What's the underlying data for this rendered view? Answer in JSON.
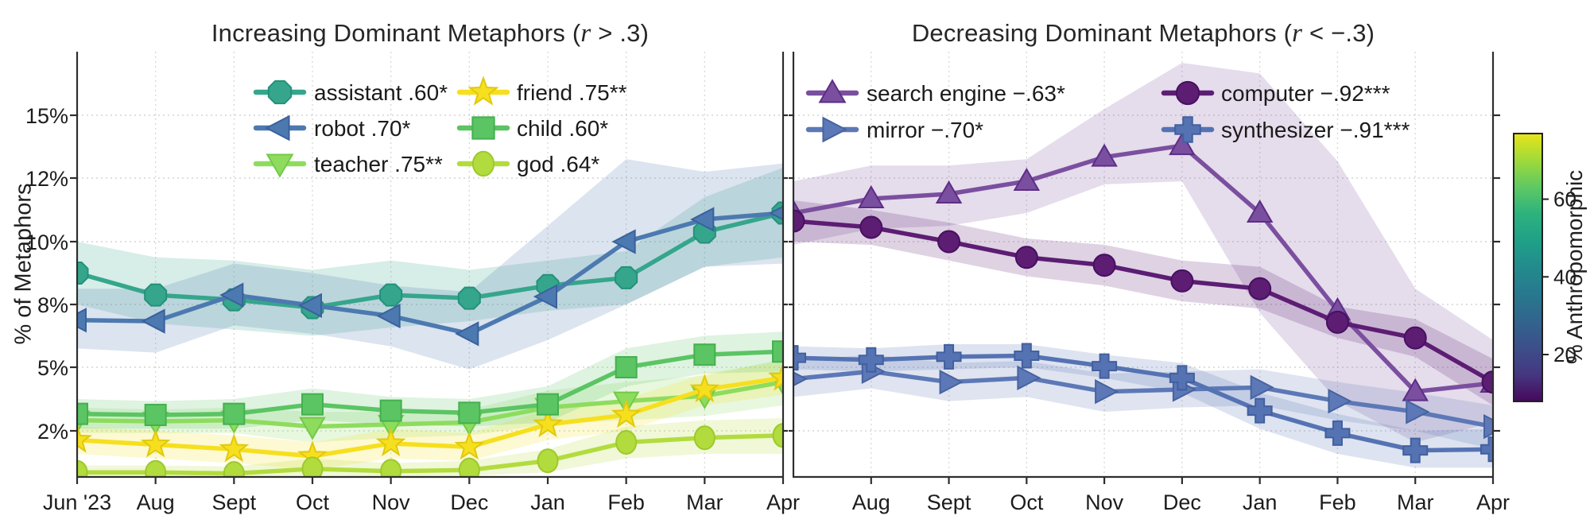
{
  "chart_data": {
    "type": "line",
    "x_categories": [
      "Jun '23",
      "Aug",
      "Sept",
      "Oct",
      "Nov",
      "Dec",
      "Jan",
      "Feb",
      "Mar",
      "Apr"
    ],
    "ylabel": "% of Metaphors",
    "y_ticks": [
      {
        "value": 15,
        "label": "15%"
      },
      {
        "value": 12,
        "label": "12%"
      },
      {
        "value": 10,
        "label": "10%"
      },
      {
        "value": 8,
        "label": "8%"
      },
      {
        "value": 5,
        "label": "5%"
      },
      {
        "value": 2,
        "label": "2%"
      }
    ],
    "grid": true,
    "legend_position": "upper-inside",
    "panels": [
      {
        "id": "increasing",
        "title_prefix": "Increasing Dominant Metaphors (",
        "title_italic": "r",
        "title_suffix": " > .3)",
        "x_tick_labels": [
          "Jun '23",
          "Aug",
          "Sept",
          "Oct",
          "Nov",
          "Dec",
          "Jan",
          "Feb",
          "Mar",
          "Apr"
        ],
        "legend_columns": [
          [
            0,
            1,
            2
          ],
          [
            3,
            4,
            5
          ]
        ],
        "series": [
          {
            "name": "assistant",
            "legend_label": "assistant .60*",
            "marker": "octagon",
            "color": "#35a68c",
            "edge": "#23917a",
            "values": [
              9.0,
              8.3,
              8.15,
              7.85,
              8.3,
              8.2,
              8.6,
              8.85,
              10.3,
              10.9
            ],
            "band_upper": [
              10.0,
              9.5,
              9.4,
              9.1,
              9.4,
              9.1,
              9.4,
              9.7,
              11.4,
              12.5
            ],
            "band_lower": [
              8.0,
              7.1,
              6.8,
              6.5,
              6.9,
              7.2,
              7.7,
              8.0,
              9.2,
              9.5
            ]
          },
          {
            "name": "robot",
            "legend_label": "robot .70*",
            "marker": "tri-left",
            "color": "#4c79b0",
            "edge": "#3a619c",
            "values": [
              7.25,
              7.2,
              8.3,
              7.95,
              7.45,
              6.6,
              8.25,
              10.0,
              10.7,
              10.9
            ],
            "band_upper": [
              8.5,
              8.5,
              9.3,
              9.0,
              8.6,
              8.4,
              10.5,
              12.9,
              12.3,
              12.7
            ],
            "band_lower": [
              5.9,
              5.7,
              7.0,
              6.6,
              6.0,
              4.9,
              6.3,
              8.0,
              9.2,
              9.3
            ]
          },
          {
            "name": "teacher",
            "legend_label": "teacher .75**",
            "marker": "tri-down",
            "color": "#8edc5e",
            "edge": "#74c947",
            "values": [
              2.5,
              2.45,
              2.5,
              2.2,
              2.3,
              2.4,
              3.1,
              3.4,
              3.65,
              4.3
            ],
            "band_upper": [
              3.1,
              3.0,
              3.1,
              2.9,
              2.9,
              3.0,
              3.9,
              4.3,
              4.6,
              5.4
            ],
            "band_lower": [
              1.9,
              1.9,
              1.9,
              1.5,
              1.7,
              1.8,
              2.3,
              2.5,
              2.7,
              3.2
            ]
          },
          {
            "name": "friend",
            "legend_label": "friend .75**",
            "marker": "star",
            "color": "#f6df1e",
            "edge": "#e0c90f",
            "values": [
              1.6,
              1.4,
              1.2,
              0.9,
              1.45,
              1.3,
              2.3,
              2.75,
              3.95,
              4.5
            ],
            "band_upper": [
              2.2,
              2.0,
              1.8,
              1.5,
              2.1,
              1.9,
              3.0,
              3.5,
              4.7,
              5.3
            ],
            "band_lower": [
              1.0,
              0.8,
              0.6,
              0.3,
              0.8,
              0.7,
              1.6,
              2.0,
              3.2,
              3.7
            ]
          },
          {
            "name": "child",
            "legend_label": "child .60*",
            "marker": "square",
            "color": "#5bc463",
            "edge": "#45b050",
            "values": [
              2.8,
              2.75,
              2.8,
              3.25,
              2.95,
              2.85,
              3.25,
              5.0,
              5.6,
              5.75
            ],
            "band_upper": [
              3.5,
              3.4,
              3.5,
              4.0,
              3.6,
              3.5,
              4.1,
              5.9,
              6.5,
              6.7
            ],
            "band_lower": [
              2.1,
              2.1,
              2.1,
              2.5,
              2.3,
              2.2,
              2.4,
              4.1,
              4.7,
              4.8
            ]
          },
          {
            "name": "god",
            "legend_label": "god .64*",
            "marker": "ellipse",
            "color": "#b2dc3e",
            "edge": "#9cc92c",
            "values": [
              0.2,
              0.2,
              0.15,
              0.35,
              0.25,
              0.3,
              0.7,
              1.5,
              1.7,
              1.8
            ],
            "band_upper": [
              0.5,
              0.5,
              0.45,
              0.8,
              0.6,
              0.7,
              1.2,
              2.2,
              2.5,
              2.6
            ],
            "band_lower": [
              0.02,
              0.02,
              0.02,
              0.05,
              0.03,
              0.05,
              0.2,
              0.8,
              1.0,
              1.0
            ]
          }
        ]
      },
      {
        "id": "decreasing",
        "title_prefix": "Decreasing Dominant Metaphors (",
        "title_italic": "r",
        "title_suffix": " < −.3)",
        "x_tick_labels": [
          "",
          "Aug",
          "Sept",
          "Oct",
          "Nov",
          "Dec",
          "Jan",
          "Feb",
          "Mar",
          "Apr"
        ],
        "legend_columns": [
          [
            0,
            1
          ],
          [
            2,
            3
          ]
        ],
        "series": [
          {
            "name": "search-engine",
            "legend_label": "search engine −.63*",
            "marker": "tri-up",
            "color": "#7b4f9f",
            "edge": "#5c2d86",
            "values": [
              10.9,
              11.35,
              11.5,
              11.9,
              13.0,
              13.55,
              10.9,
              7.7,
              3.85,
              4.25
            ],
            "band_upper": [
              11.9,
              12.6,
              12.6,
              12.9,
              15.3,
              17.5,
              17.0,
              12.8,
              8.5,
              6.3
            ],
            "band_lower": [
              9.9,
              10.4,
              10.5,
              10.9,
              11.8,
              11.9,
              7.6,
              3.4,
              1.5,
              2.4
            ]
          },
          {
            "name": "mirror",
            "legend_label": "mirror −.70*",
            "marker": "tri-right",
            "color": "#5d78b6",
            "edge": "#47639f",
            "values": [
              4.45,
              4.8,
              4.3,
              4.5,
              3.85,
              3.95,
              4.05,
              3.4,
              2.9,
              2.2
            ],
            "band_upper": [
              5.3,
              5.6,
              5.2,
              5.3,
              4.7,
              4.8,
              4.9,
              4.3,
              3.8,
              3.2
            ],
            "band_lower": [
              3.6,
              4.0,
              3.4,
              3.6,
              2.9,
              3.1,
              3.2,
              2.5,
              2.0,
              1.2
            ]
          },
          {
            "name": "computer",
            "legend_label": "computer −.92***",
            "marker": "circle",
            "color": "#5c1d73",
            "edge": "#470f61",
            "values": [
              10.65,
              10.45,
              10.0,
              9.5,
              9.25,
              8.75,
              8.5,
              7.15,
              6.4,
              4.3
            ],
            "band_upper": [
              11.3,
              11.0,
              10.6,
              10.1,
              9.9,
              9.4,
              9.2,
              7.9,
              7.3,
              5.4
            ],
            "band_lower": [
              10.0,
              9.9,
              9.4,
              8.9,
              8.6,
              8.1,
              7.8,
              6.4,
              5.5,
              3.2
            ]
          },
          {
            "name": "synthesizer",
            "legend_label": "synthesizer −.91***",
            "marker": "plus",
            "color": "#5573b3",
            "edge": "#42609e",
            "values": [
              5.45,
              5.35,
              5.5,
              5.55,
              5.05,
              4.5,
              2.95,
              1.9,
              1.15,
              1.2
            ],
            "band_upper": [
              6.0,
              5.9,
              6.1,
              6.1,
              5.6,
              5.2,
              3.8,
              2.8,
              2.0,
              2.1
            ],
            "band_lower": [
              4.9,
              4.8,
              4.9,
              5.0,
              4.5,
              3.8,
              2.1,
              1.0,
              0.4,
              0.4
            ]
          }
        ]
      }
    ],
    "colorbar": {
      "label": "% Anthropomorphic",
      "tick_values": [
        60,
        40,
        20
      ],
      "colors_bottom_to_top": [
        "#46085c",
        "#453781",
        "#3c4f8a",
        "#32648e",
        "#28788e",
        "#228b8d",
        "#1fa088",
        "#2db27d",
        "#5ec962",
        "#9fda3a",
        "#e8e419"
      ]
    }
  }
}
